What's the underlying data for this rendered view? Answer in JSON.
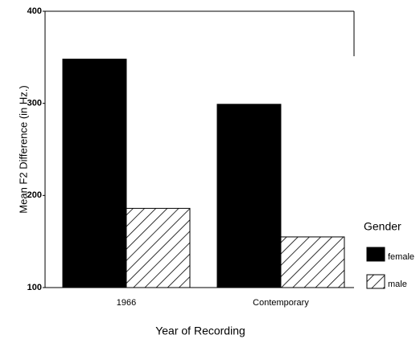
{
  "chart_data": {
    "type": "bar",
    "x_label": "Year of Recording",
    "y_label": "Mean F2 Difference (in Hz.)",
    "categories": [
      "1966",
      "Contemporary"
    ],
    "series": [
      {
        "name": "female",
        "color": "#000000",
        "hatch": false,
        "values": [
          348,
          299
        ]
      },
      {
        "name": "male",
        "color": "#000000",
        "hatch": true,
        "values": [
          186,
          155
        ]
      }
    ],
    "ylim": [
      100,
      400
    ],
    "yticks": [
      100,
      200,
      300,
      400
    ],
    "legend_title": "Gender",
    "legend": "right"
  }
}
